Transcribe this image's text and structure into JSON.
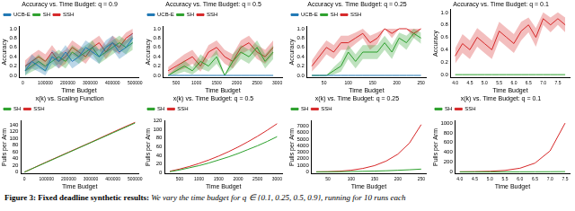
{
  "chart_data": [
    {
      "type": "line",
      "title": "Accuracy vs. Time Budget: q = 0.9",
      "xlabel": "Time Budget",
      "ylabel": "Accuracy",
      "legend": "upper left",
      "x": [
        10000,
        40000,
        70000,
        100000,
        130000,
        160000,
        190000,
        220000,
        250000,
        280000,
        310000,
        340000,
        370000,
        400000,
        430000,
        460000,
        490000
      ],
      "xlim": [
        -15000,
        515000
      ],
      "xticks": [
        0,
        100000,
        200000,
        300000,
        400000,
        500000
      ],
      "ylim": [
        -0.05,
        1.05
      ],
      "yticks": [
        {
          "value": 0,
          "label": "0.0"
        },
        0.2,
        0.4,
        0.6,
        0.8,
        {
          "value": 1,
          "label": "1.0"
        }
      ],
      "series": [
        {
          "name": "UCB-E",
          "color": "#1f77b4",
          "values": [
            0.1,
            0.3,
            0.2,
            0.1,
            0.4,
            0.3,
            0.5,
            0.3,
            0.4,
            0.6,
            0.5,
            0.4,
            0.6,
            0.7,
            0.5,
            0.6,
            0.8
          ],
          "error": [
            0.1,
            0.15,
            0.12,
            0.1,
            0.15,
            0.15,
            0.15,
            0.15,
            0.15,
            0.15,
            0.15,
            0.15,
            0.15,
            0.15,
            0.15,
            0.15,
            0.12
          ]
        },
        {
          "name": "SH",
          "color": "#2ca02c",
          "values": [
            0.1,
            0.2,
            0.3,
            0.2,
            0.3,
            0.4,
            0.3,
            0.5,
            0.4,
            0.5,
            0.6,
            0.4,
            0.5,
            0.6,
            0.7,
            0.6,
            0.7
          ],
          "error": [
            0.1,
            0.12,
            0.15,
            0.12,
            0.15,
            0.15,
            0.15,
            0.15,
            0.15,
            0.15,
            0.15,
            0.15,
            0.15,
            0.15,
            0.15,
            0.15,
            0.15
          ]
        },
        {
          "name": "SSH",
          "color": "#d62728",
          "values": [
            0.2,
            0.3,
            0.4,
            0.3,
            0.5,
            0.3,
            0.4,
            0.6,
            0.5,
            0.4,
            0.6,
            0.7,
            0.5,
            0.7,
            0.6,
            0.8,
            0.9
          ],
          "error": [
            0.12,
            0.15,
            0.15,
            0.15,
            0.15,
            0.15,
            0.15,
            0.15,
            0.15,
            0.15,
            0.15,
            0.15,
            0.15,
            0.15,
            0.15,
            0.12,
            0.1
          ]
        }
      ]
    },
    {
      "type": "line",
      "title": "Accuracy vs. Time Budget: q = 0.5",
      "xlabel": "Time Budget",
      "ylabel": "Accuracy",
      "legend": "upper left",
      "x": [
        300,
        500,
        700,
        900,
        1100,
        1300,
        1500,
        1700,
        1900,
        2100,
        2300,
        2500,
        2700,
        2900
      ],
      "xlim": [
        180,
        3120
      ],
      "xticks": [
        500,
        1000,
        1500,
        2000,
        2500,
        3000
      ],
      "ylim": [
        -0.05,
        1.05
      ],
      "yticks": [
        {
          "value": 0,
          "label": "0.0"
        },
        0.2,
        0.4,
        0.6,
        0.8,
        {
          "value": 1,
          "label": "1.0"
        }
      ],
      "series": [
        {
          "name": "UCB-E",
          "color": "#1f77b4",
          "values": [
            0,
            0,
            0,
            0,
            0,
            0,
            0,
            0,
            0,
            0,
            0,
            0,
            0,
            0
          ],
          "error": [
            0,
            0,
            0,
            0,
            0,
            0,
            0,
            0,
            0,
            0,
            0,
            0,
            0,
            0
          ]
        },
        {
          "name": "SH",
          "color": "#2ca02c",
          "values": [
            0,
            0.1,
            0.2,
            0.1,
            0.3,
            0.2,
            0.4,
            0,
            0.3,
            0.5,
            0.4,
            0.6,
            0.3,
            0.5
          ],
          "error": [
            0,
            0.08,
            0.12,
            0.08,
            0.15,
            0.12,
            0.15,
            0,
            0.15,
            0.15,
            0.15,
            0.15,
            0.15,
            0.15
          ]
        },
        {
          "name": "SSH",
          "color": "#d62728",
          "values": [
            0.1,
            0.2,
            0.3,
            0.4,
            0.2,
            0.5,
            0.6,
            0.4,
            0.3,
            0.6,
            0.7,
            0.5,
            0.4,
            0.6
          ],
          "error": [
            0.08,
            0.12,
            0.15,
            0.15,
            0.12,
            0.15,
            0.15,
            0.15,
            0.15,
            0.15,
            0.15,
            0.15,
            0.15,
            0.15
          ]
        }
      ]
    },
    {
      "type": "line",
      "title": "Accuracy vs. Time Budget: q = 0.25",
      "xlabel": "Time Budget",
      "ylabel": "Accuracy",
      "legend": "upper left",
      "x": [
        25,
        40,
        55,
        70,
        85,
        100,
        115,
        130,
        145,
        160,
        175,
        190,
        205,
        220,
        235,
        250
      ],
      "xlim": [
        15,
        260
      ],
      "xticks": [
        50,
        100,
        150,
        200,
        250
      ],
      "ylim": [
        -0.05,
        1.05
      ],
      "yticks": [
        {
          "value": 0,
          "label": "0.0"
        },
        0.2,
        0.4,
        0.6,
        0.8,
        {
          "value": 1,
          "label": "1.0"
        }
      ],
      "series": [
        {
          "name": "UCB-E",
          "color": "#1f77b4",
          "values": [
            0,
            0,
            0,
            0,
            0,
            0,
            0,
            0,
            0,
            0,
            0,
            0,
            0,
            0,
            0,
            0
          ],
          "error": [
            0,
            0,
            0,
            0,
            0,
            0,
            0,
            0,
            0,
            0,
            0,
            0,
            0,
            0,
            0,
            0
          ]
        },
        {
          "name": "SH",
          "color": "#2ca02c",
          "values": [
            0,
            0,
            0,
            0.1,
            0.2,
            0.5,
            0.3,
            0.5,
            0.5,
            0.5,
            0.7,
            0.5,
            0.8,
            0.7,
            0.9,
            0.8
          ],
          "error": [
            0,
            0,
            0,
            0.08,
            0.12,
            0.15,
            0.15,
            0.15,
            0.15,
            0.15,
            0.15,
            0.15,
            0.12,
            0.15,
            0.1,
            0.12
          ]
        },
        {
          "name": "SSH",
          "color": "#d62728",
          "values": [
            0.2,
            0.4,
            0.6,
            0.5,
            0.7,
            0.7,
            0.8,
            0.9,
            0.7,
            0.8,
            1.0,
            0.9,
            1.0,
            1.0,
            0.9,
            1.0
          ],
          "error": [
            0.12,
            0.15,
            0.15,
            0.15,
            0.15,
            0.15,
            0.12,
            0.1,
            0.15,
            0.12,
            0,
            0.1,
            0,
            0,
            0.1,
            0
          ]
        }
      ]
    },
    {
      "type": "line",
      "title": "Accuracy vs. Time Budget: q = 0.1",
      "xlabel": "Time Budget",
      "ylabel": "Accuracy",
      "x": [
        4.0,
        4.25,
        4.5,
        4.75,
        5.0,
        5.25,
        5.5,
        5.75,
        6.0,
        6.25,
        6.5,
        6.75,
        7.0,
        7.25,
        7.5,
        7.75
      ],
      "xlim": [
        3.85,
        7.9
      ],
      "xticks": [
        {
          "value": 4,
          "label": "4.0"
        },
        4.5,
        {
          "value": 5,
          "label": "5.0"
        },
        5.5,
        {
          "value": 6,
          "label": "6.0"
        },
        6.5,
        {
          "value": 7,
          "label": "7.0"
        },
        7.5
      ],
      "ylim": [
        -0.05,
        1.05
      ],
      "yticks": [
        {
          "value": 0,
          "label": "0.0"
        },
        0.2,
        0.4,
        0.6,
        0.8,
        {
          "value": 1,
          "label": "1.0"
        }
      ],
      "series": [
        {
          "name": "SH",
          "color": "#2ca02c",
          "values": [
            0,
            0,
            0,
            0,
            0,
            0,
            0,
            0,
            0,
            0,
            0,
            0,
            0,
            0,
            0,
            0
          ],
          "error": [
            0,
            0,
            0,
            0,
            0,
            0,
            0,
            0,
            0,
            0,
            0,
            0,
            0,
            0,
            0,
            0
          ]
        },
        {
          "name": "SSH",
          "color": "#d62728",
          "values": [
            0.3,
            0.5,
            0.4,
            0.6,
            0.5,
            0.4,
            0.7,
            0.6,
            0.5,
            0.7,
            0.8,
            0.6,
            0.9,
            0.8,
            0.9,
            0.8
          ],
          "error": [
            0.12,
            0.15,
            0.15,
            0.15,
            0.15,
            0.15,
            0.15,
            0.15,
            0.15,
            0.15,
            0.12,
            0.15,
            0.1,
            0.12,
            0.1,
            0.12
          ]
        }
      ]
    },
    {
      "type": "line",
      "title": "x(k) vs. Scaling Function",
      "xlabel": "Time Budget",
      "ylabel": "Pulls per Arm",
      "legend": "upper left",
      "x": [
        0,
        100000,
        200000,
        300000,
        400000,
        500000
      ],
      "xlim": [
        -15000,
        515000
      ],
      "xticks": [
        0,
        100000,
        200000,
        300000,
        400000,
        500000
      ],
      "ylim": [
        -5,
        152
      ],
      "yticks": [
        0,
        20,
        40,
        60,
        80,
        100,
        120,
        140
      ],
      "series": [
        {
          "name": "SH",
          "color": "#2ca02c",
          "values": [
            0,
            29,
            58,
            87,
            116,
            145
          ]
        },
        {
          "name": "SSH",
          "color": "#d62728",
          "values": [
            0,
            30,
            59,
            88,
            118,
            147
          ]
        }
      ]
    },
    {
      "type": "line",
      "title": "x(k) vs. Time Budget: q = 0.5",
      "xlabel": "Time Budget",
      "ylabel": "Pulls per Arm",
      "legend": "upper left",
      "x": [
        250,
        500,
        750,
        1000,
        1250,
        1500,
        1750,
        2000,
        2250,
        2500,
        2750,
        3000
      ],
      "xlim": [
        120,
        3130
      ],
      "xticks": [
        500,
        1000,
        1500,
        2000,
        2500,
        3000
      ],
      "ylim": [
        -3,
        120
      ],
      "yticks": [
        0,
        20,
        40,
        60,
        80,
        100,
        120
      ],
      "series": [
        {
          "name": "SH",
          "color": "#2ca02c",
          "values": [
            2,
            6,
            11,
            16,
            22,
            29,
            36,
            44,
            53,
            62,
            72,
            83
          ]
        },
        {
          "name": "SSH",
          "color": "#d62728",
          "values": [
            3,
            8,
            14,
            21,
            29,
            38,
            48,
            59,
            71,
            84,
            98,
            113
          ]
        }
      ]
    },
    {
      "type": "line",
      "title": "x(k) vs. Time Budget: q = 0.25",
      "xlabel": "Time Budget",
      "ylabel": "Pulls per Arm",
      "legend": "upper left",
      "x": [
        25,
        50,
        75,
        100,
        125,
        150,
        175,
        200,
        225,
        250
      ],
      "xlim": [
        15,
        260
      ],
      "xticks": [
        50,
        100,
        150,
        200,
        250
      ],
      "ylim": [
        -300,
        7800
      ],
      "yticks": [
        0,
        1000,
        2000,
        3000,
        4000,
        5000,
        6000,
        7000
      ],
      "series": [
        {
          "name": "SH",
          "color": "#2ca02c",
          "values": [
            2,
            10,
            25,
            50,
            80,
            120,
            170,
            240,
            320,
            420
          ]
        },
        {
          "name": "SSH",
          "color": "#d62728",
          "values": [
            5,
            30,
            100,
            250,
            520,
            950,
            1650,
            2700,
            4400,
            7200
          ]
        }
      ]
    },
    {
      "type": "line",
      "title": "x(k) vs. Time Budget: q = 0.1",
      "xlabel": "Time Budget",
      "ylabel": "Pulls per Arm",
      "legend": "upper left",
      "x": [
        4.0,
        4.5,
        5.0,
        5.5,
        6.0,
        6.5,
        7.0,
        7.5
      ],
      "xlim": [
        3.85,
        7.65
      ],
      "xticks": [
        {
          "value": 4,
          "label": "4.0"
        },
        4.5,
        {
          "value": 5,
          "label": "5.0"
        },
        5.5,
        {
          "value": 6,
          "label": "6.0"
        },
        6.5,
        {
          "value": 7,
          "label": "7.0"
        },
        7.5
      ],
      "ylim": [
        -40,
        1050
      ],
      "yticks": [
        0,
        200,
        400,
        600,
        800,
        1000
      ],
      "series": [
        {
          "name": "SH",
          "color": "#2ca02c",
          "values": [
            0,
            0,
            0,
            1,
            1,
            2,
            3,
            5
          ]
        },
        {
          "name": "SSH",
          "color": "#d62728",
          "values": [
            2,
            5,
            12,
            30,
            75,
            180,
            430,
            1000
          ]
        }
      ]
    }
  ],
  "caption": {
    "label": "Figure 3:",
    "bold": "Fixed deadline synthetic results:",
    "text": "We vary the time budget for q ∈ {0.1, 0.25, 0.5, 0.9}, running for 10 runs each"
  }
}
